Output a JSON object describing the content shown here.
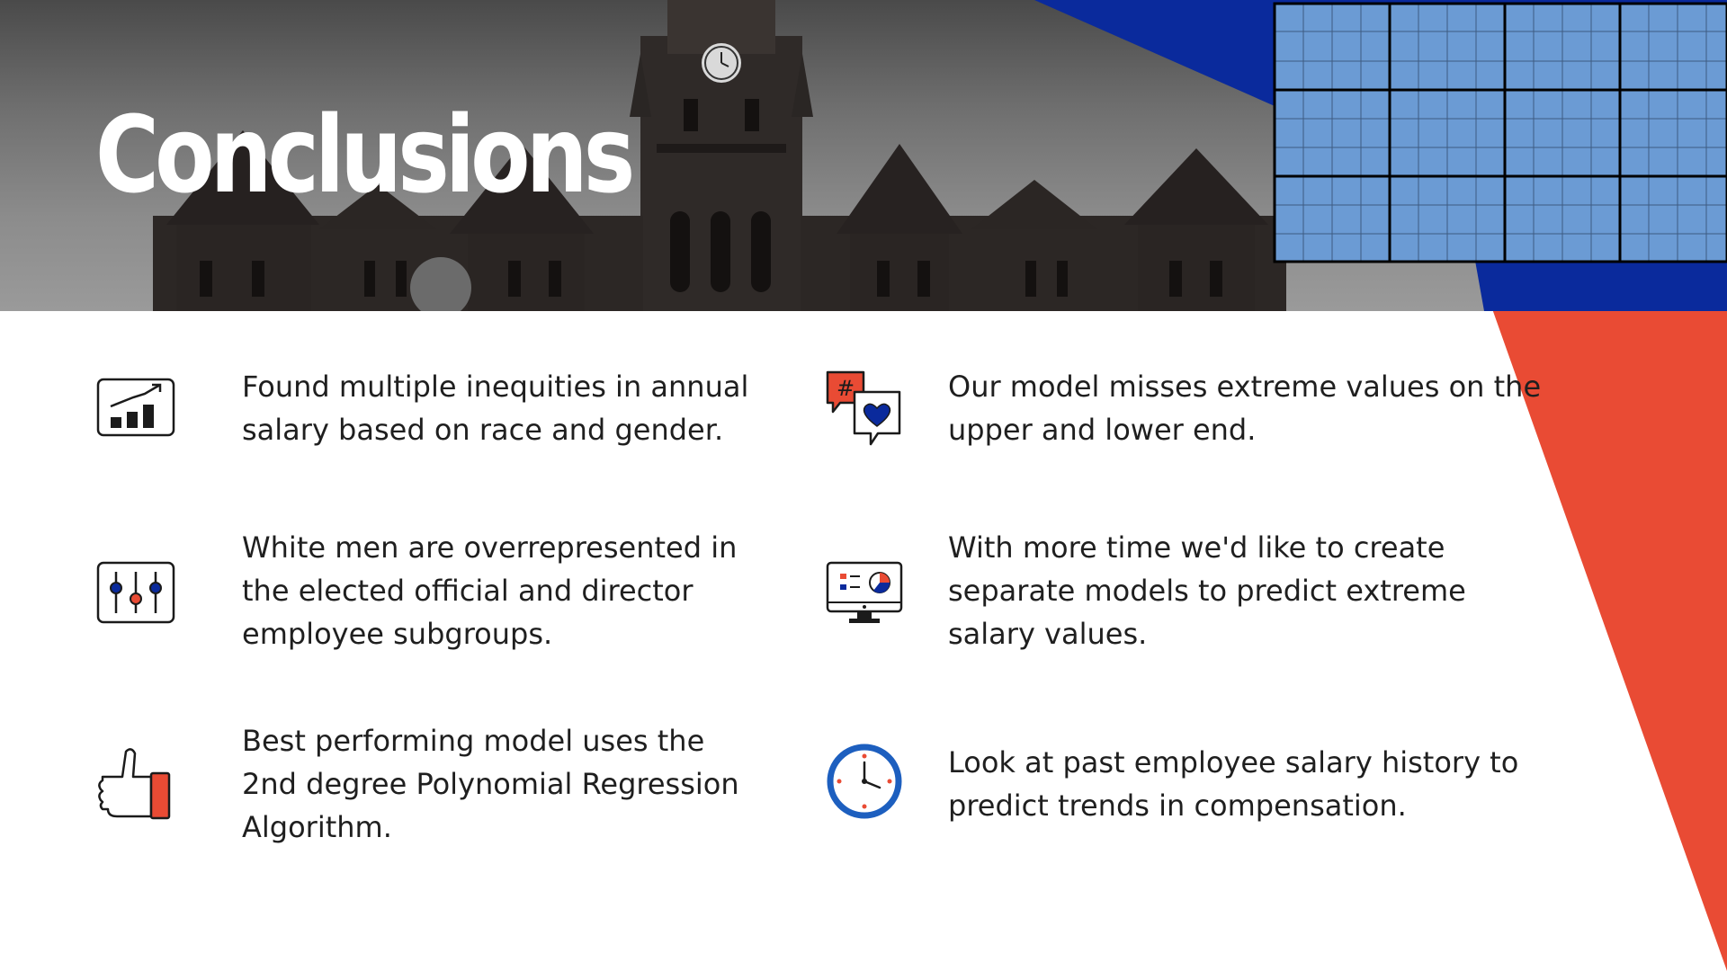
{
  "title": "Conclusions",
  "colors": {
    "accent_red": "#e94b34",
    "accent_blue": "#0a2a9c",
    "grid_blue": "#6b9bd4",
    "text": "#1f1f1f"
  },
  "items_left": [
    {
      "icon": "bar-chart-trend-icon",
      "text": "Found multiple inequities in annual salary based on race and gender."
    },
    {
      "icon": "sliders-icon",
      "text": "White men are overrepresented in the elected official and director employee subgroups."
    },
    {
      "icon": "thumbs-up-icon",
      "text": "Best performing model uses the 2nd degree Polynomial Regression Algorithm."
    }
  ],
  "items_right": [
    {
      "icon": "hashtag-heart-chat-icon",
      "text": "Our model misses extreme values on the upper and lower end."
    },
    {
      "icon": "monitor-dashboard-icon",
      "text": "With more time we'd like to create separate models to predict extreme salary values."
    },
    {
      "icon": "clock-icon",
      "text": "Look at past employee salary history to predict trends in compensation."
    }
  ]
}
